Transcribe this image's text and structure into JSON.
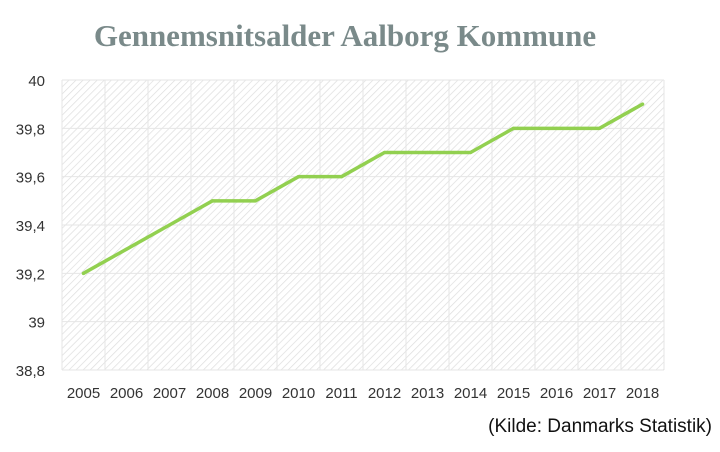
{
  "chart_data": {
    "type": "line",
    "title": "Gennemsnitsalder Aalborg Kommune",
    "source": "(Kilde: Danmarks Statistik)",
    "categories": [
      "2005",
      "2006",
      "2007",
      "2008",
      "2009",
      "2010",
      "2011",
      "2012",
      "2013",
      "2014",
      "2015",
      "2016",
      "2017",
      "2018"
    ],
    "series": [
      {
        "values": [
          39.2,
          39.3,
          39.4,
          39.5,
          39.5,
          39.6,
          39.6,
          39.7,
          39.7,
          39.7,
          39.8,
          39.8,
          39.8,
          39.9
        ]
      }
    ],
    "y_ticks": [
      38.8,
      39,
      39.2,
      39.4,
      39.6,
      39.8,
      40
    ],
    "y_tick_labels": [
      "38,8",
      "39",
      "39,2",
      "39,4",
      "39,6",
      "39,8",
      "40"
    ],
    "ylim": [
      38.8,
      40
    ],
    "grid": true,
    "colors": {
      "line": "#92d050",
      "title": "#7a8a8a",
      "hatch": "#d9d9d9"
    }
  }
}
